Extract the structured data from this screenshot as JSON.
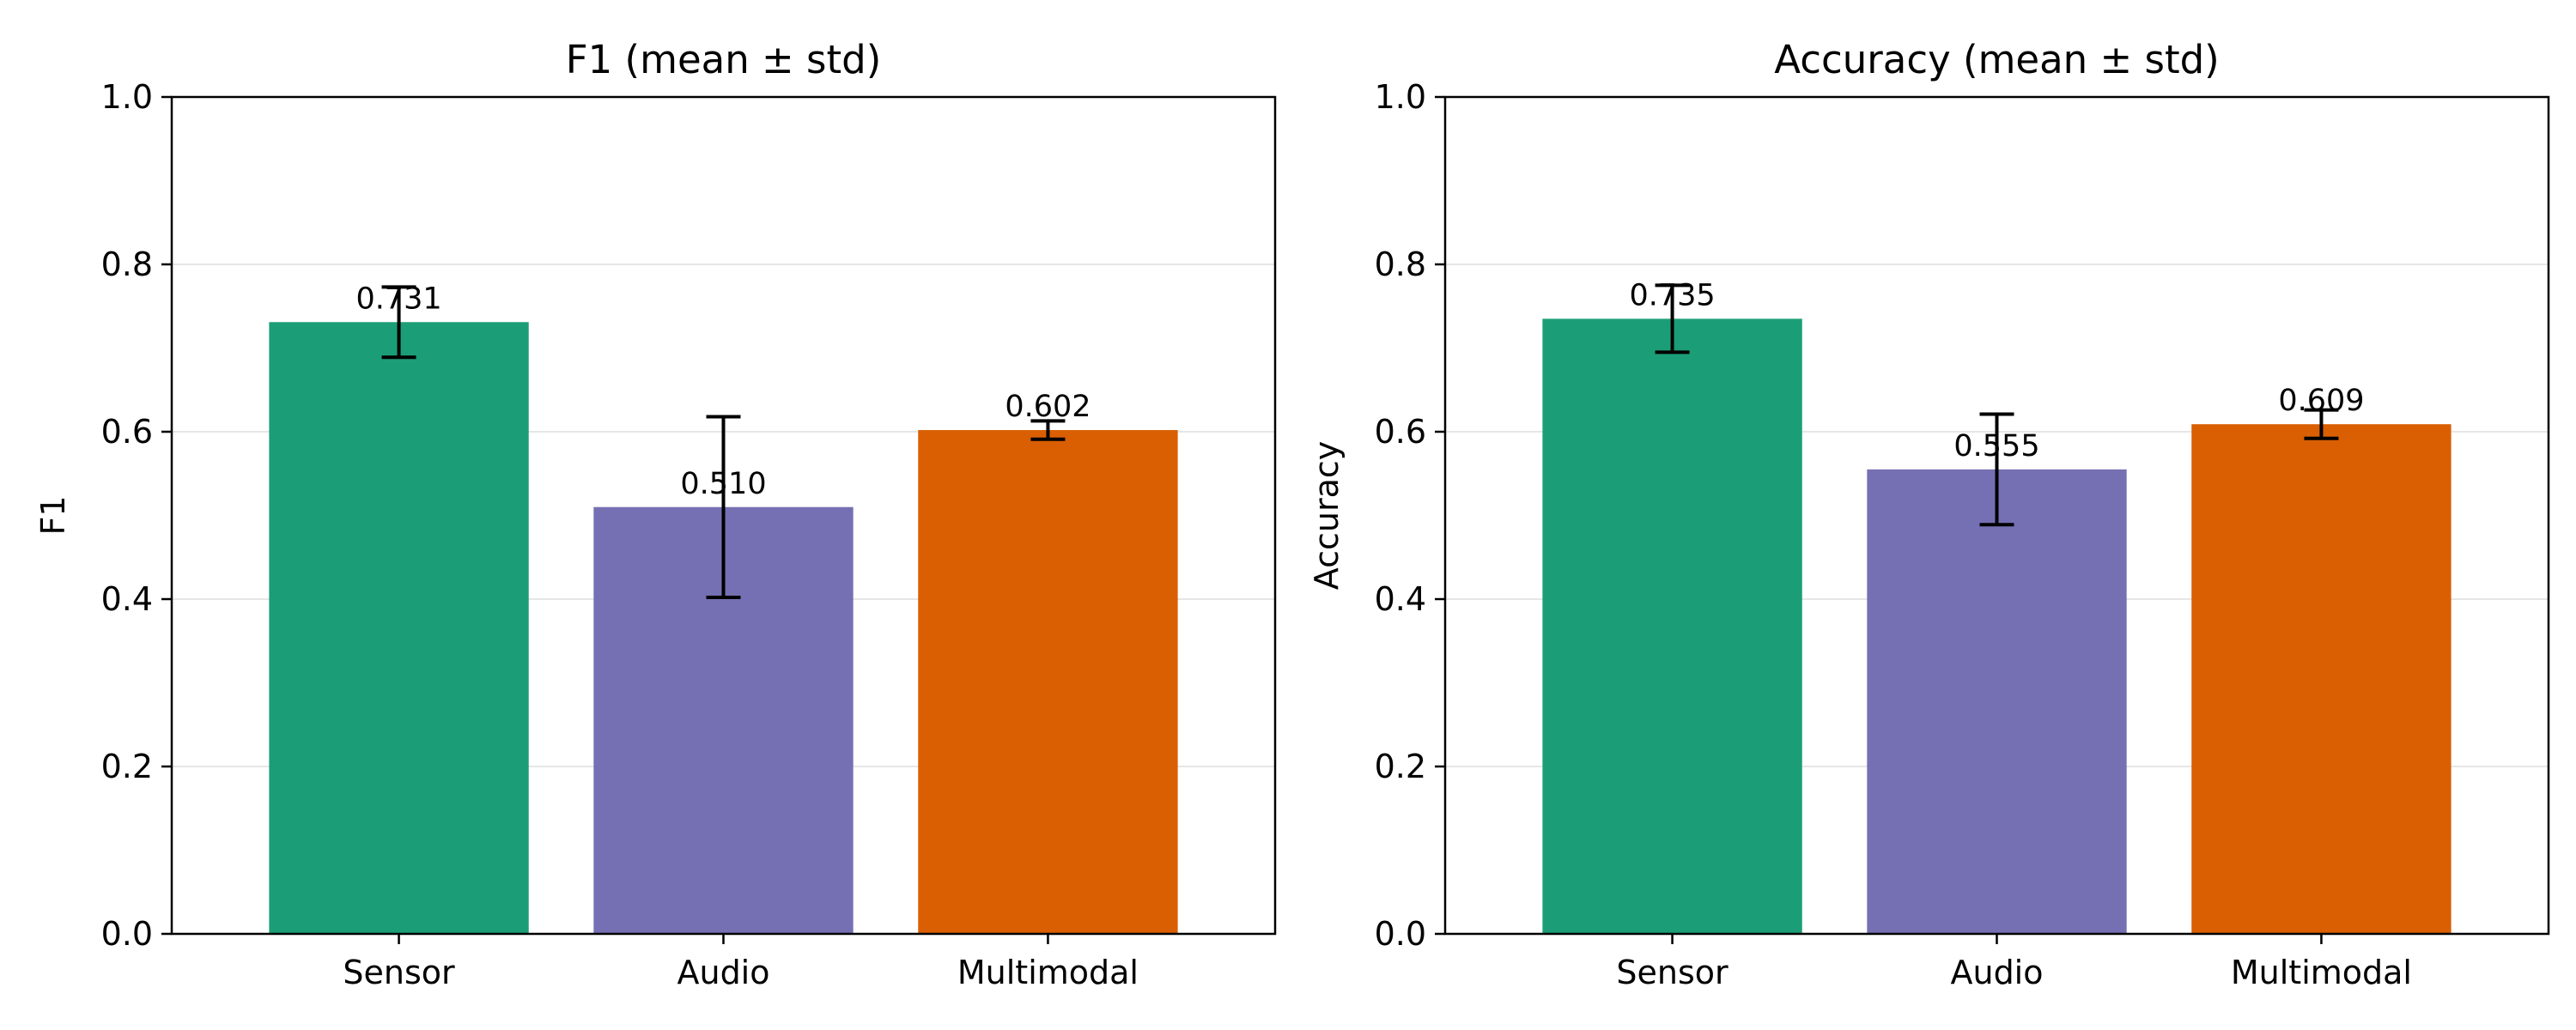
{
  "chart_data": [
    {
      "type": "bar",
      "title": "F1 (mean ± std)",
      "xlabel": "",
      "ylabel": "F1",
      "ylim": [
        0,
        1
      ],
      "yticks": [
        "0.0",
        "0.2",
        "0.4",
        "0.6",
        "0.8",
        "1.0"
      ],
      "grid": "y",
      "categories": [
        "Sensor",
        "Audio",
        "Multimodal"
      ],
      "values": [
        0.731,
        0.51,
        0.602
      ],
      "std": [
        0.042,
        0.108,
        0.011
      ],
      "value_labels": [
        "0.731",
        "0.510",
        "0.602"
      ],
      "colors": [
        "#1b9e77",
        "#7570b3",
        "#d95f02"
      ]
    },
    {
      "type": "bar",
      "title": "Accuracy (mean ± std)",
      "xlabel": "",
      "ylabel": "Accuracy",
      "ylim": [
        0,
        1
      ],
      "yticks": [
        "0.0",
        "0.2",
        "0.4",
        "0.6",
        "0.8",
        "1.0"
      ],
      "grid": "y",
      "categories": [
        "Sensor",
        "Audio",
        "Multimodal"
      ],
      "values": [
        0.735,
        0.555,
        0.609
      ],
      "std": [
        0.04,
        0.066,
        0.017
      ],
      "value_labels": [
        "0.735",
        "0.555",
        "0.609"
      ],
      "colors": [
        "#1b9e77",
        "#7570b3",
        "#d95f02"
      ]
    }
  ]
}
